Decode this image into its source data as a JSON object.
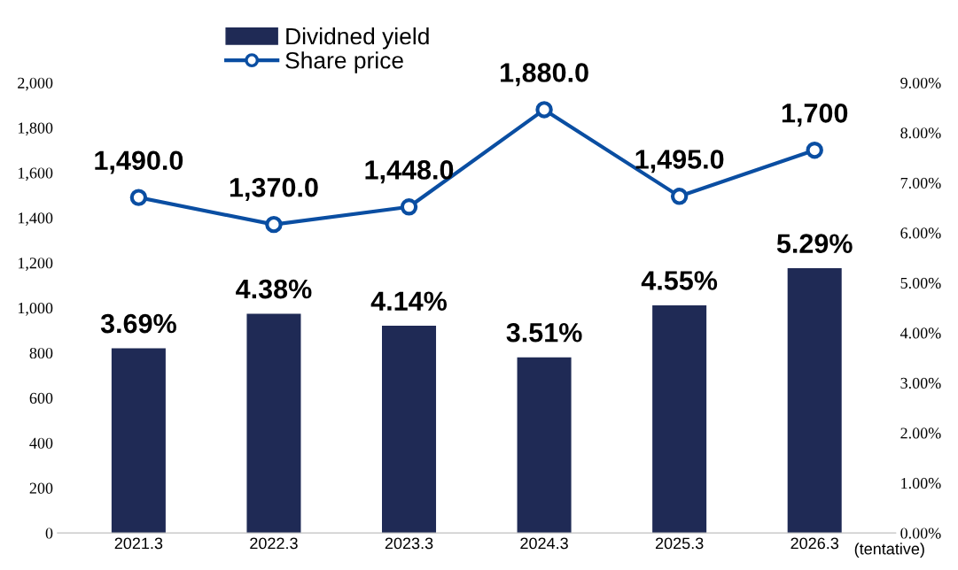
{
  "chart_data": {
    "type": "bar",
    "categories": [
      "2021.3",
      "2022.3",
      "2023.3",
      "2024.3",
      "2025.3",
      "2026.3"
    ],
    "series": [
      {
        "name": "Dividned yield",
        "axis": "y2",
        "color": "#1f2a55",
        "values": [
          3.69,
          4.38,
          4.14,
          3.51,
          4.55,
          5.29
        ],
        "value_labels": [
          "3.69%",
          "4.38%",
          "4.14%",
          "3.51%",
          "4.55%",
          "5.29%"
        ]
      },
      {
        "name": "Share price",
        "type": "line",
        "axis": "y",
        "color": "#0a4ea2",
        "marker": "circle",
        "line_style": "solid",
        "values": [
          1490,
          1370,
          1448,
          1880,
          1495,
          1700
        ],
        "value_labels": [
          "1,490.0",
          "1,370.0",
          "1,448.0",
          "1,880.0",
          "1,495.0",
          "1,700"
        ]
      }
    ],
    "ylim": [
      0,
      2000
    ],
    "yticks": [
      0,
      200,
      400,
      600,
      800,
      {
        "value": 1000,
        "label": "1,000"
      },
      {
        "value": 1200,
        "label": "1,200"
      },
      {
        "value": 1400,
        "label": "1,400"
      },
      {
        "value": 1600,
        "label": "1,600"
      },
      {
        "value": 1800,
        "label": "1,800"
      },
      {
        "value": 2000,
        "label": "2,000"
      }
    ],
    "y2lim": [
      0,
      9
    ],
    "y2ticks": [
      {
        "value": 0,
        "label": "0.00%"
      },
      {
        "value": 1,
        "label": "1.00%"
      },
      {
        "value": 2,
        "label": "2.00%"
      },
      {
        "value": 3,
        "label": "3.00%"
      },
      {
        "value": 4,
        "label": "4.00%"
      },
      {
        "value": 5,
        "label": "5.00%"
      },
      {
        "value": 6,
        "label": "6.00%"
      },
      {
        "value": 7,
        "label": "7.00%"
      },
      {
        "value": 8,
        "label": "8.00%"
      },
      {
        "value": 9,
        "label": "9.00%"
      }
    ],
    "annotations": [
      {
        "text": "(tentative)",
        "x": "2026.3",
        "y": 0
      }
    ],
    "grid": false,
    "legend": "top"
  }
}
